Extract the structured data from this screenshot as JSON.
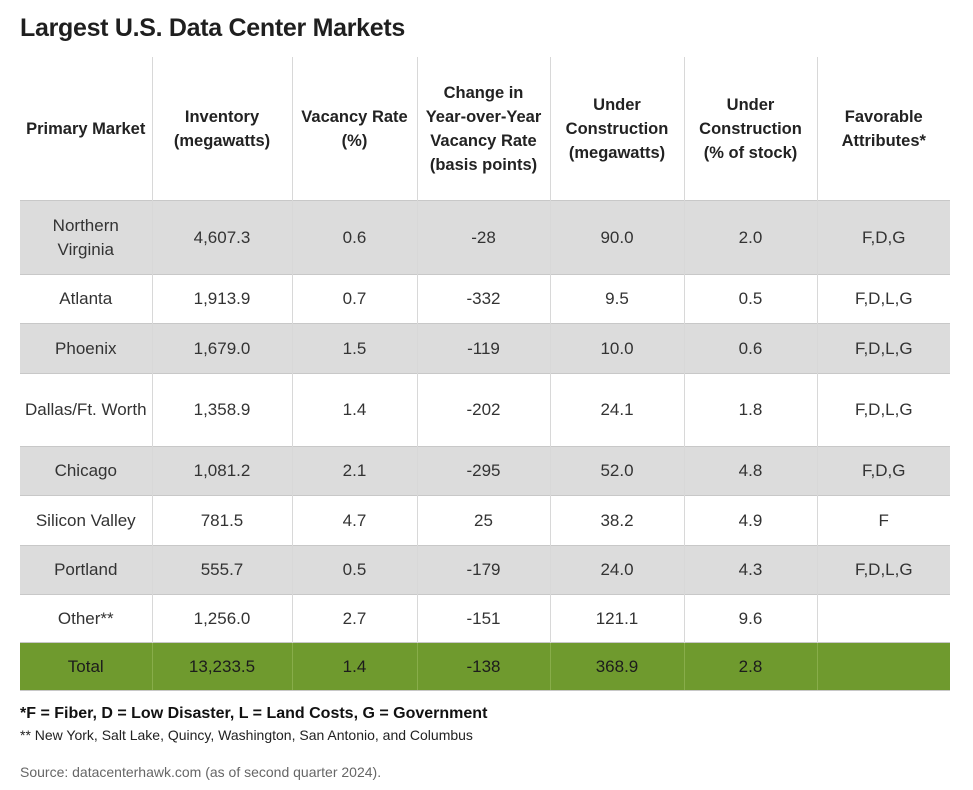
{
  "title": "Largest U.S. Data Center Markets",
  "table": {
    "headers": [
      "Primary Market",
      "Inventory (megawatts)",
      "Vacancy Rate (%)",
      "Change in Year-over-Year Vacancy Rate (basis points)",
      "Under Construction (megawatts)",
      "Under Construction (% of stock)",
      "Favorable Attributes*"
    ],
    "rows": [
      [
        "Northern Virginia",
        "4,607.3",
        "0.6",
        "-28",
        "90.0",
        "2.0",
        "F,D,G"
      ],
      [
        "Atlanta",
        "1,913.9",
        "0.7",
        "-332",
        "9.5",
        "0.5",
        "F,D,L,G"
      ],
      [
        "Phoenix",
        "1,679.0",
        "1.5",
        "-119",
        "10.0",
        "0.6",
        "F,D,L,G"
      ],
      [
        "Dallas/Ft. Worth",
        "1,358.9",
        "1.4",
        "-202",
        "24.1",
        "1.8",
        "F,D,L,G"
      ],
      [
        "Chicago",
        "1,081.2",
        "2.1",
        "-295",
        "52.0",
        "4.8",
        "F,D,G"
      ],
      [
        "Silicon Valley",
        "781.5",
        "4.7",
        "25",
        "38.2",
        "4.9",
        "F"
      ],
      [
        "Portland",
        "555.7",
        "0.5",
        "-179",
        "24.0",
        "4.3",
        "F,D,L,G"
      ],
      [
        "Other**",
        "1,256.0",
        "2.7",
        "-151",
        "121.1",
        "9.6",
        ""
      ]
    ],
    "total": [
      "Total",
      "13,233.5",
      "1.4",
      "-138",
      "368.9",
      "2.8",
      ""
    ]
  },
  "footnotes": {
    "attributes": "*F = Fiber, D = Low Disaster, L = Land Costs, G = Government",
    "other": "** New York, Salt Lake, Quincy, Washington, San Antonio, and Columbus"
  },
  "source": "Source: datacenterhawk.com (as of second quarter 2024).",
  "colors": {
    "header_bg": "#ffffff",
    "shaded_row": "#dcdcdc",
    "total_row": "#6f9a2e",
    "grid_line": "#c8c8c8"
  }
}
